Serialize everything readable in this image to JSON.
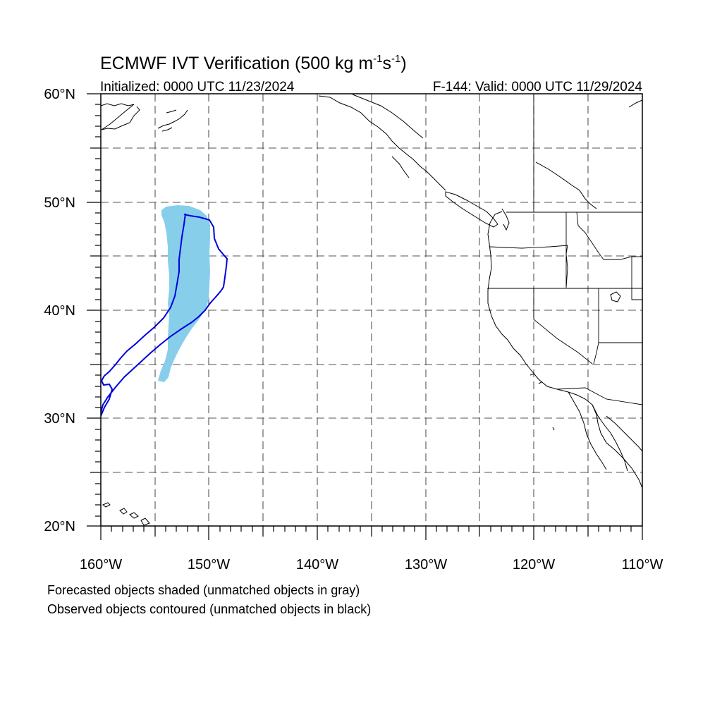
{
  "title": {
    "main": "ECMWF IVT Verification (500 kg m",
    "sup1": "-1",
    "mid": "s",
    "sup2": "-1",
    "close": ")"
  },
  "subtitle_left": "Initialized: 0000 UTC 11/23/2024",
  "subtitle_right": "F-144: Valid: 0000 UTC 11/29/2024",
  "map": {
    "lon_range": [
      -160,
      -110
    ],
    "lat_range": [
      20,
      60
    ],
    "grid": "dashed",
    "lon_ticks": [
      {
        "value": -160,
        "label": "160°W"
      },
      {
        "value": -150,
        "label": "150°W"
      },
      {
        "value": -140,
        "label": "140°W"
      },
      {
        "value": -130,
        "label": "130°W"
      },
      {
        "value": -120,
        "label": "120°W"
      },
      {
        "value": -110,
        "label": "110°W"
      }
    ],
    "lat_ticks": [
      {
        "value": 20,
        "label": "20°N"
      },
      {
        "value": 30,
        "label": "30°N"
      },
      {
        "value": 40,
        "label": "40°N"
      },
      {
        "value": 50,
        "label": "50°N"
      },
      {
        "value": 60,
        "label": "60°N"
      }
    ],
    "forecast_object_color": "#87ceeb",
    "observed_object_color": "#0000dd"
  },
  "captions": {
    "forecast": "Forecasted objects shaded (unmatched objects in gray)",
    "observed": "Observed objects contoured (unmatched objects in black)"
  }
}
